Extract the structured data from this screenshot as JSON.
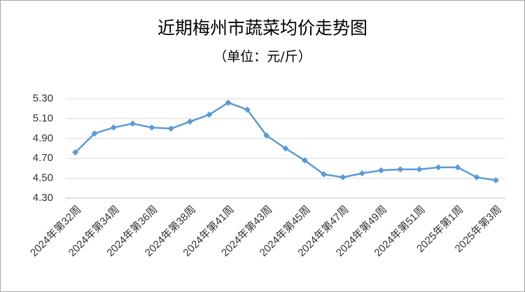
{
  "chart_data": {
    "type": "line",
    "title": "近期梅州市蔬菜均价走势图",
    "subtitle": "（单位：元/斤）",
    "categories": [
      "2024年第32周",
      null,
      "2024年第34周",
      null,
      "2024年第36周",
      null,
      "2024年第38周",
      null,
      "2024年第41周",
      null,
      "2024年第43周",
      null,
      "2024年第45周",
      null,
      "2024年第47周",
      null,
      "2024年第49周",
      null,
      "2024年第51周",
      null,
      "2025年第1周",
      null,
      "2025年第3周"
    ],
    "series": [
      {
        "color": "#5b9bd5",
        "values": [
          4.76,
          4.95,
          5.01,
          5.05,
          5.01,
          5.0,
          5.07,
          5.14,
          5.26,
          5.19,
          4.93,
          4.8,
          4.68,
          4.54,
          4.51,
          4.55,
          4.58,
          4.59,
          4.59,
          4.61,
          4.61,
          4.51,
          4.48
        ]
      }
    ],
    "ylim": [
      4.3,
      5.3
    ],
    "yticks": [
      {
        "value": 4.3,
        "label": "4.30"
      },
      {
        "value": 4.5,
        "label": "4.50"
      },
      {
        "value": 4.7,
        "label": "4.70"
      },
      {
        "value": 4.9,
        "label": "4.90"
      },
      {
        "value": 5.1,
        "label": "5.10"
      },
      {
        "value": 5.3,
        "label": "5.30"
      }
    ],
    "grid": true
  }
}
